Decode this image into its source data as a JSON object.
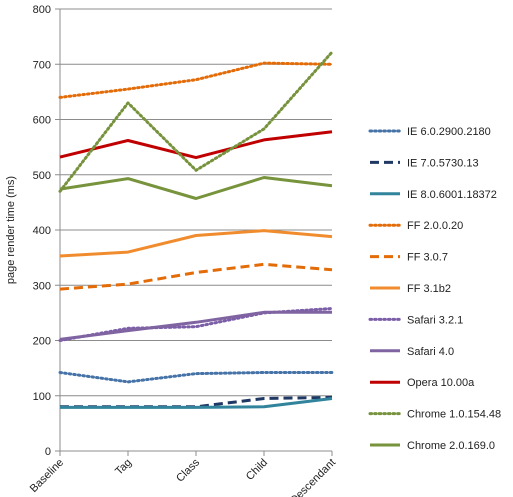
{
  "chart_data": {
    "type": "line",
    "title": "",
    "xlabel": "",
    "ylabel": "page render time (ms)",
    "ylim": [
      0,
      800
    ],
    "yticks": [
      0,
      100,
      200,
      300,
      400,
      500,
      600,
      700,
      800
    ],
    "grid": true,
    "legend_position": "right",
    "categories": [
      "Baseline",
      "Tag",
      "Class",
      "Child",
      "Descendant"
    ],
    "series": [
      {
        "name": "IE 6.0.2900.2180",
        "values": [
          142,
          125,
          140,
          142,
          142
        ],
        "color": "#4572A7",
        "dash": "dotted"
      },
      {
        "name": "IE 7.0.5730.13",
        "values": [
          80,
          80,
          80,
          95,
          97
        ],
        "color": "#1F3864",
        "dash": "dashed"
      },
      {
        "name": "IE 8.0.6001.18372",
        "values": [
          79,
          79,
          79,
          80,
          95
        ],
        "color": "#31849B",
        "dash": "solid"
      },
      {
        "name": "FF 2.0.0.20",
        "values": [
          640,
          655,
          672,
          702,
          700
        ],
        "color": "#E36C09",
        "dash": "dotted"
      },
      {
        "name": "FF 3.0.7",
        "values": [
          293,
          302,
          323,
          338,
          328
        ],
        "color": "#E36C09",
        "dash": "dashed"
      },
      {
        "name": "FF 3.1b2",
        "values": [
          353,
          360,
          390,
          399,
          388
        ],
        "color": "#F08C2E",
        "dash": "solid"
      },
      {
        "name": "Safari 3.2.1",
        "values": [
          200,
          222,
          225,
          250,
          258
        ],
        "color": "#7B5EA7",
        "dash": "dotted"
      },
      {
        "name": "Safari 4.0",
        "values": [
          202,
          218,
          233,
          251,
          251
        ],
        "color": "#8064A2",
        "dash": "solid"
      },
      {
        "name": "Opera 10.00a",
        "values": [
          532,
          562,
          531,
          563,
          578
        ],
        "color": "#C00000",
        "dash": "solid"
      },
      {
        "name": "Chrome 1.0.154.48",
        "values": [
          470,
          630,
          508,
          583,
          722
        ],
        "color": "#76923C",
        "dash": "dotted"
      },
      {
        "name": "Chrome 2.0.169.0",
        "values": [
          474,
          493,
          457,
          495,
          480
        ],
        "color": "#77933C",
        "dash": "solid"
      }
    ]
  }
}
